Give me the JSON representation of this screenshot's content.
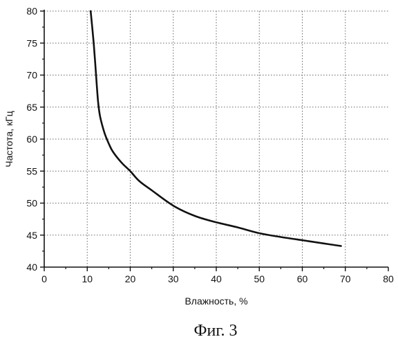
{
  "caption": "Фиг. 3",
  "chart_data": {
    "type": "line",
    "title": "",
    "xlabel": "Влажность, %",
    "ylabel": "Частота, кГц",
    "xlim": [
      0,
      80
    ],
    "ylim": [
      40,
      80
    ],
    "xticks": [
      0,
      10,
      20,
      30,
      40,
      50,
      60,
      70,
      80
    ],
    "yticks": [
      40,
      45,
      50,
      55,
      60,
      65,
      70,
      75,
      80
    ],
    "grid": true,
    "legend": "none",
    "colors": {
      "line": "#111111",
      "grid": "#666666",
      "axis": "#111111"
    },
    "series": [
      {
        "x": [
          10.8,
          11.5,
          12.0,
          12.5,
          13.0,
          14.0,
          15.0,
          16.0,
          18.0,
          20.0,
          22.0,
          25.0,
          30.0,
          35.0,
          40.0,
          45.0,
          50.0,
          55.0,
          60.0,
          65.0,
          69.0
        ],
        "y": [
          80.0,
          75.0,
          70.5,
          66.0,
          63.5,
          61.0,
          59.3,
          58.0,
          56.3,
          55.0,
          53.5,
          52.0,
          49.6,
          48.0,
          47.0,
          46.2,
          45.3,
          44.7,
          44.2,
          43.7,
          43.3
        ]
      }
    ]
  }
}
